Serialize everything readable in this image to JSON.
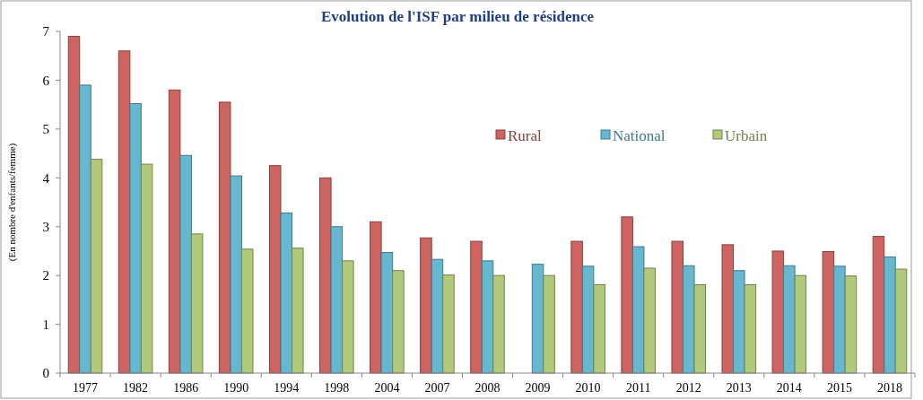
{
  "chart_data": {
    "type": "bar",
    "title": "Evolution de l'ISF par milieu de résidence",
    "ylabel": "(En nombre d'enfants/femme)",
    "categories": [
      "1977",
      "1982",
      "1986",
      "1990",
      "1994",
      "1998",
      "2004",
      "2007",
      "2008",
      "2009",
      "2010",
      "2011",
      "2012",
      "2013",
      "2014",
      "2015",
      "2018"
    ],
    "series": [
      {
        "name": "Rural",
        "color": "#cd6461",
        "values": [
          6.9,
          6.6,
          5.8,
          5.55,
          4.25,
          4.0,
          3.1,
          2.77,
          2.7,
          null,
          2.7,
          3.2,
          2.7,
          2.63,
          2.5,
          2.49,
          2.8
        ]
      },
      {
        "name": "National",
        "color": "#65b8d0",
        "values": [
          5.9,
          5.52,
          4.46,
          4.04,
          3.28,
          3.0,
          2.47,
          2.33,
          2.3,
          2.23,
          2.19,
          2.59,
          2.2,
          2.1,
          2.2,
          2.19,
          2.38
        ]
      },
      {
        "name": "Urbain",
        "color": "#b0c97a",
        "values": [
          4.38,
          4.28,
          2.85,
          2.54,
          2.56,
          2.3,
          2.1,
          2.01,
          2.0,
          2.0,
          1.81,
          2.15,
          1.81,
          1.81,
          2.0,
          1.99,
          2.13
        ]
      }
    ],
    "ylim": [
      0,
      7
    ],
    "yticks": [
      0,
      1,
      2,
      3,
      4,
      5,
      6,
      7
    ],
    "legend": "top right"
  }
}
